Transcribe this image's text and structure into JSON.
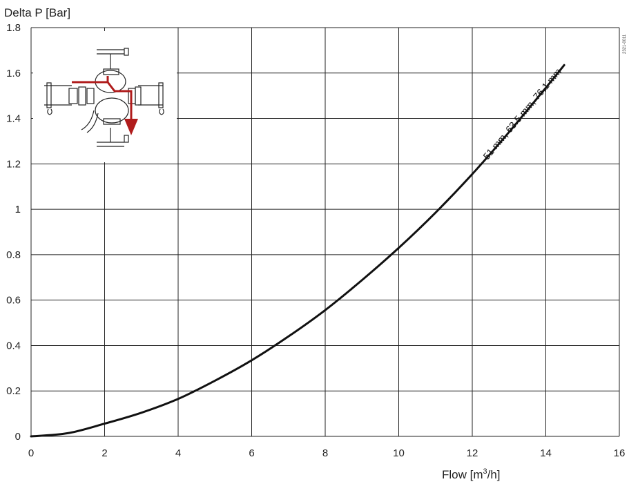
{
  "chart_data": {
    "type": "line",
    "title": "",
    "ylabel": "Delta P [Bar]",
    "xlabel_main": "Flow  [m",
    "xlabel_sup": "3",
    "xlabel_end": "/h]",
    "xlim": [
      0,
      16
    ],
    "ylim": [
      0,
      1.8
    ],
    "x_ticks": [
      "0",
      "2",
      "4",
      "6",
      "8",
      "10",
      "12",
      "14",
      "16"
    ],
    "y_ticks": [
      "0",
      "0.2",
      "0.4",
      "0.6",
      "0.8",
      "1",
      "1.2",
      "1.4",
      "1.6",
      "1.8"
    ],
    "grid": true,
    "image_code": "2321-0011",
    "series": [
      {
        "name": "51 mm, 63.5 mm, 76.1 mm",
        "x": [
          0,
          1,
          2,
          3,
          4,
          5,
          6,
          7,
          8,
          9,
          10,
          11,
          12,
          13,
          14,
          14.5
        ],
        "y": [
          0,
          0.014,
          0.056,
          0.104,
          0.165,
          0.245,
          0.335,
          0.44,
          0.556,
          0.688,
          0.83,
          0.985,
          1.155,
          1.34,
          1.535,
          1.635
        ]
      }
    ],
    "colors": {
      "line": "#111111",
      "grid": "#222222",
      "valve_arrow": "#b01c1c"
    }
  }
}
